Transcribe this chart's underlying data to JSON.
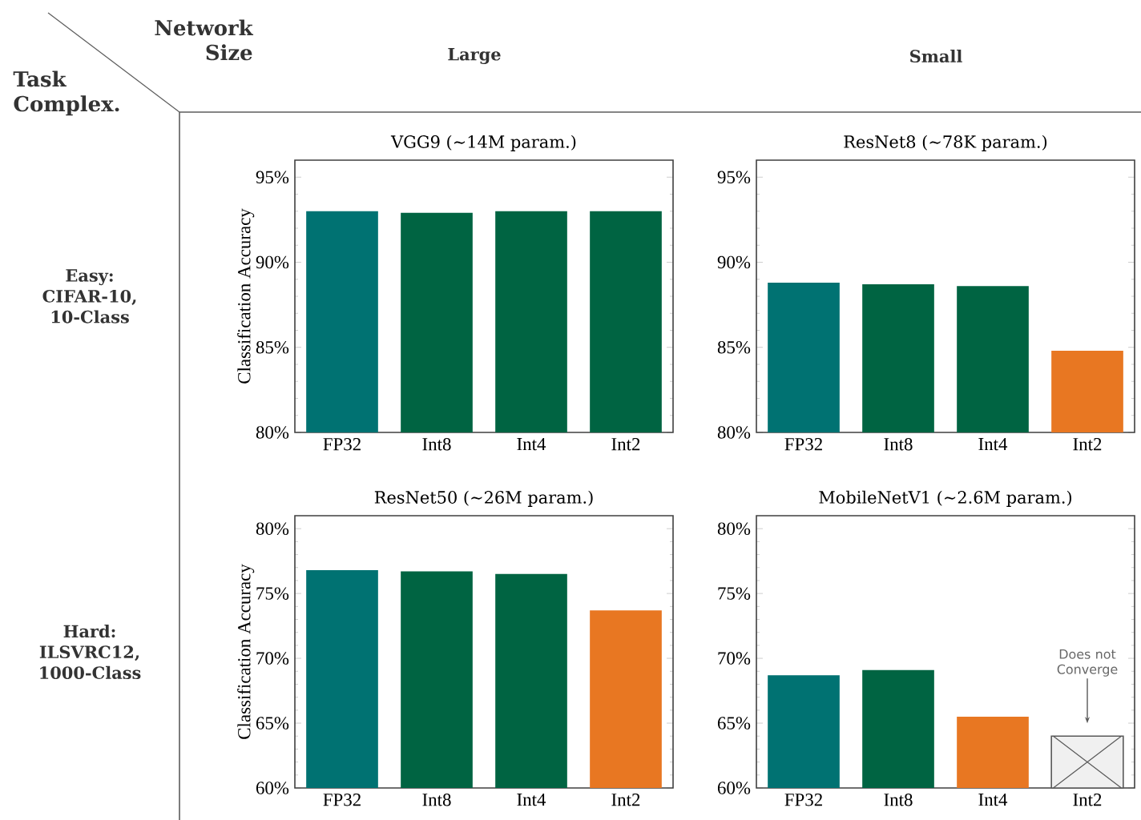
{
  "chart_data": [
    {
      "type": "bar",
      "title": "VGG9  (∼14M param.)",
      "ylabel": "Classification Accuracy",
      "categories": [
        "FP32",
        "Int8",
        "Int4",
        "Int2"
      ],
      "values": [
        93.0,
        92.9,
        93.0,
        93.0
      ],
      "colors": [
        "#007272",
        "#006442",
        "#006442",
        "#006442"
      ],
      "ylim": [
        80,
        96
      ],
      "yticks": [
        {
          "value": 80,
          "label": "80%"
        },
        {
          "value": 85,
          "label": "85%"
        },
        {
          "value": 90,
          "label": "90%"
        },
        {
          "value": 95,
          "label": "95%"
        }
      ],
      "annotations": [
        "Large",
        "Easy: CIFAR-10, 10-Class",
        "Network Size",
        "Task Complex."
      ]
    },
    {
      "type": "bar",
      "title": "ResNet8  (∼78K param.)",
      "categories": [
        "FP32",
        "Int8",
        "Int4",
        "Int2"
      ],
      "values": [
        88.8,
        88.7,
        88.6,
        84.8
      ],
      "colors": [
        "#007272",
        "#006442",
        "#006442",
        "#e87722"
      ],
      "ylim": [
        80,
        96
      ],
      "yticks": [
        {
          "value": 80,
          "label": "80%"
        },
        {
          "value": 85,
          "label": "85%"
        },
        {
          "value": 90,
          "label": "90%"
        },
        {
          "value": 95,
          "label": "95%"
        }
      ],
      "annotations": [
        "Small"
      ]
    },
    {
      "type": "bar",
      "title": "ResNet50  (∼26M param.)",
      "ylabel": "Classification Accuracy",
      "categories": [
        "FP32",
        "Int8",
        "Int4",
        "Int2"
      ],
      "values": [
        76.8,
        76.7,
        76.5,
        73.7
      ],
      "colors": [
        "#007272",
        "#006442",
        "#006442",
        "#e87722"
      ],
      "ylim": [
        60,
        81
      ],
      "yticks": [
        {
          "value": 60,
          "label": "60%"
        },
        {
          "value": 65,
          "label": "65%"
        },
        {
          "value": 70,
          "label": "70%"
        },
        {
          "value": 75,
          "label": "75%"
        },
        {
          "value": 80,
          "label": "80%"
        }
      ],
      "annotations": [
        "Hard: ILSVRC12, 1000-Class"
      ]
    },
    {
      "type": "bar",
      "title": "MobileNetV1  (∼2.6M param.)",
      "categories": [
        "FP32",
        "Int8",
        "Int4",
        "Int2"
      ],
      "values": [
        68.7,
        69.1,
        65.5,
        64
      ],
      "colors": [
        "#007272",
        "#006442",
        "#e87722",
        "#f0f0f0"
      ],
      "ylim": [
        60,
        81
      ],
      "yticks": [
        {
          "value": 60,
          "label": "60%"
        },
        {
          "value": 65,
          "label": "65%"
        },
        {
          "value": 70,
          "label": "70%"
        },
        {
          "value": 75,
          "label": "75%"
        },
        {
          "value": 80,
          "label": "80%"
        }
      ],
      "annotations": [
        "Does not Converge"
      ]
    }
  ]
}
